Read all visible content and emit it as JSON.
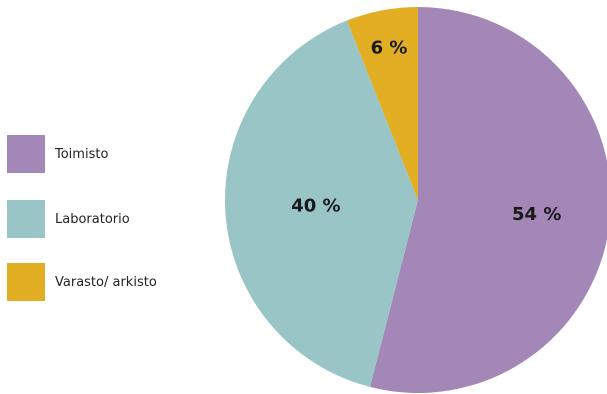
{
  "chart_data": {
    "type": "pie",
    "categories": [
      "Toimisto",
      "Laboratorio",
      "Varasto/ arkisto"
    ],
    "values": [
      54,
      40,
      6
    ],
    "value_labels": [
      "54 %",
      "40 %",
      "6 %"
    ],
    "colors": [
      "#a387b7",
      "#99c5c7",
      "#e1ae24"
    ],
    "legend_position": "left"
  }
}
